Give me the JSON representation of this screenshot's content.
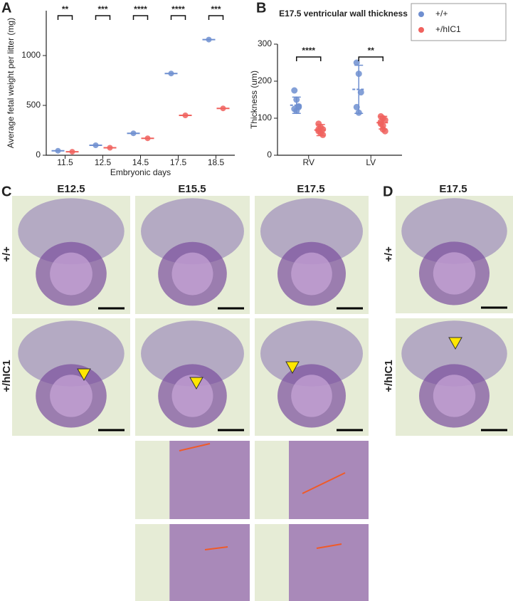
{
  "chart_data": [
    {
      "type": "dot",
      "x_label": "Embryonic days",
      "y_label": "Average fetal weight per litter (mg)",
      "categories": [
        "11.5",
        "12.5",
        "14.5",
        "17.5",
        "18.5"
      ],
      "series": [
        {
          "color": "#6f8fd0",
          "values": [
            45,
            100,
            220,
            820,
            1160
          ]
        },
        {
          "color": "#f0625e",
          "values": [
            35,
            75,
            170,
            400,
            470
          ]
        }
      ],
      "significance": [
        "**",
        "***",
        "****",
        "****",
        "***"
      ],
      "ylim": [
        0,
        1450
      ],
      "yticks": [
        0,
        500,
        1000
      ]
    },
    {
      "type": "dot",
      "title": "E17.5 ventricular wall thickness",
      "y_label": "Thickness (um)",
      "categories": [
        "RV",
        "LV"
      ],
      "series": [
        {
          "name": "+/+",
          "color": "#6f8fd0",
          "values": [
            135,
            178
          ],
          "errors": [
            22,
            65
          ],
          "points": [
            [
              175,
              150,
              132,
              125,
              120,
              130
            ],
            [
              250,
              220,
              170,
              130,
              115
            ]
          ]
        },
        {
          "name": "+/hIC1",
          "color": "#f0625e",
          "values": [
            68,
            88
          ],
          "errors": [
            15,
            17
          ],
          "points": [
            [
              85,
              75,
              70,
              65,
              60,
              55,
              70
            ],
            [
              105,
              100,
              95,
              85,
              70,
              65,
              90,
              80
            ]
          ]
        }
      ],
      "significance": [
        "****",
        "**"
      ],
      "ylim": [
        0,
        300
      ],
      "yticks": [
        0,
        100,
        200,
        300
      ],
      "legend": "upper right"
    }
  ],
  "panels": {
    "labels": [
      "A",
      "B",
      "C",
      "D"
    ],
    "c_columns": [
      "E12.5",
      "E15.5",
      "E17.5"
    ],
    "c_rows": [
      "+/+",
      "+/hIC1"
    ],
    "d_column": "E17.5",
    "d_rows": [
      "+/+",
      "+/hIC1"
    ]
  }
}
